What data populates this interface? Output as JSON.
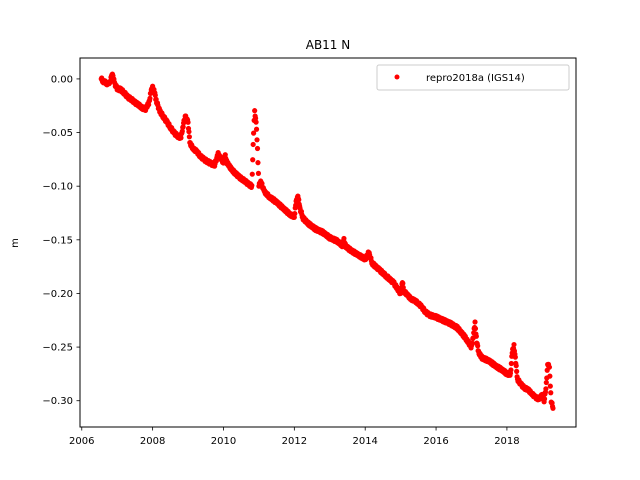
{
  "chart_data": {
    "type": "scatter",
    "title": "AB11 N",
    "xlabel": "",
    "ylabel": "m",
    "xlim": [
      2005.95,
      2019.95
    ],
    "ylim": [
      -0.3245,
      0.0195
    ],
    "xticks": [
      2006,
      2008,
      2010,
      2012,
      2014,
      2016,
      2018
    ],
    "xtick_labels": [
      "2006",
      "2008",
      "2010",
      "2012",
      "2014",
      "2016",
      "2018"
    ],
    "yticks": [
      0.0,
      -0.05,
      -0.1,
      -0.15,
      -0.2,
      -0.25,
      -0.3
    ],
    "ytick_labels": [
      "0.00",
      "−0.05",
      "−0.10",
      "−0.15",
      "−0.20",
      "−0.25",
      "−0.30"
    ],
    "grid": false,
    "legend_position": "top-right",
    "series": [
      {
        "name": "repro2018a (IGS14)",
        "color": "#ff0000",
        "marker": "circle",
        "points": [
          [
            2006.55,
            0.0
          ],
          [
            2006.6,
            -0.002
          ],
          [
            2006.65,
            -0.003
          ],
          [
            2006.7,
            -0.004
          ],
          [
            2006.75,
            -0.005
          ],
          [
            2006.8,
            -0.002
          ],
          [
            2006.85,
            0.003
          ],
          [
            2006.88,
            0.004
          ],
          [
            2006.92,
            -0.004
          ],
          [
            2007.0,
            -0.009
          ],
          [
            2007.1,
            -0.01
          ],
          [
            2007.2,
            -0.013
          ],
          [
            2007.3,
            -0.017
          ],
          [
            2007.4,
            -0.019
          ],
          [
            2007.5,
            -0.022
          ],
          [
            2007.6,
            -0.024
          ],
          [
            2007.7,
            -0.027
          ],
          [
            2007.8,
            -0.028
          ],
          [
            2007.9,
            -0.022
          ],
          [
            2007.95,
            -0.012
          ],
          [
            2008.0,
            -0.008
          ],
          [
            2008.05,
            -0.012
          ],
          [
            2008.1,
            -0.02
          ],
          [
            2008.2,
            -0.03
          ],
          [
            2008.3,
            -0.035
          ],
          [
            2008.4,
            -0.04
          ],
          [
            2008.5,
            -0.045
          ],
          [
            2008.6,
            -0.05
          ],
          [
            2008.7,
            -0.053
          ],
          [
            2008.8,
            -0.055
          ],
          [
            2008.85,
            -0.045
          ],
          [
            2008.92,
            -0.035
          ],
          [
            2009.0,
            -0.04
          ],
          [
            2009.05,
            -0.06
          ],
          [
            2009.15,
            -0.065
          ],
          [
            2009.25,
            -0.068
          ],
          [
            2009.35,
            -0.072
          ],
          [
            2009.45,
            -0.075
          ],
          [
            2009.55,
            -0.077
          ],
          [
            2009.65,
            -0.079
          ],
          [
            2009.75,
            -0.08
          ],
          [
            2009.85,
            -0.07
          ],
          [
            2009.9,
            -0.072
          ],
          [
            2009.95,
            -0.076
          ],
          [
            2010.0,
            -0.077
          ],
          [
            2010.05,
            -0.072
          ],
          [
            2010.1,
            -0.078
          ],
          [
            2010.2,
            -0.083
          ],
          [
            2010.3,
            -0.087
          ],
          [
            2010.4,
            -0.09
          ],
          [
            2010.5,
            -0.093
          ],
          [
            2010.6,
            -0.095
          ],
          [
            2010.7,
            -0.098
          ],
          [
            2010.8,
            -0.1
          ],
          [
            2010.85,
            -0.05
          ],
          [
            2010.88,
            -0.03
          ],
          [
            2010.92,
            -0.04
          ],
          [
            2010.96,
            -0.065
          ],
          [
            2011.0,
            -0.1
          ],
          [
            2011.05,
            -0.095
          ],
          [
            2011.15,
            -0.105
          ],
          [
            2011.3,
            -0.11
          ],
          [
            2011.5,
            -0.115
          ],
          [
            2011.7,
            -0.121
          ],
          [
            2011.9,
            -0.127
          ],
          [
            2012.0,
            -0.128
          ],
          [
            2012.05,
            -0.115
          ],
          [
            2012.1,
            -0.108
          ],
          [
            2012.15,
            -0.12
          ],
          [
            2012.25,
            -0.13
          ],
          [
            2012.4,
            -0.135
          ],
          [
            2012.6,
            -0.14
          ],
          [
            2012.8,
            -0.143
          ],
          [
            2013.0,
            -0.148
          ],
          [
            2013.2,
            -0.151
          ],
          [
            2013.35,
            -0.155
          ],
          [
            2013.4,
            -0.15
          ],
          [
            2013.45,
            -0.156
          ],
          [
            2013.6,
            -0.16
          ],
          [
            2013.8,
            -0.164
          ],
          [
            2014.0,
            -0.168
          ],
          [
            2014.1,
            -0.162
          ],
          [
            2014.2,
            -0.172
          ],
          [
            2014.4,
            -0.178
          ],
          [
            2014.6,
            -0.184
          ],
          [
            2014.8,
            -0.19
          ],
          [
            2015.0,
            -0.2
          ],
          [
            2015.05,
            -0.19
          ],
          [
            2015.1,
            -0.198
          ],
          [
            2015.2,
            -0.202
          ],
          [
            2015.3,
            -0.205
          ],
          [
            2015.4,
            -0.207
          ],
          [
            2015.5,
            -0.209
          ],
          [
            2015.6,
            -0.213
          ],
          [
            2015.7,
            -0.217
          ],
          [
            2015.8,
            -0.22
          ],
          [
            2016.0,
            -0.222
          ],
          [
            2016.2,
            -0.225
          ],
          [
            2016.4,
            -0.228
          ],
          [
            2016.6,
            -0.232
          ],
          [
            2016.8,
            -0.24
          ],
          [
            2017.0,
            -0.25
          ],
          [
            2017.05,
            -0.24
          ],
          [
            2017.1,
            -0.228
          ],
          [
            2017.15,
            -0.245
          ],
          [
            2017.2,
            -0.255
          ],
          [
            2017.3,
            -0.26
          ],
          [
            2017.5,
            -0.263
          ],
          [
            2017.7,
            -0.268
          ],
          [
            2017.9,
            -0.272
          ],
          [
            2018.0,
            -0.275
          ],
          [
            2018.1,
            -0.275
          ],
          [
            2018.15,
            -0.255
          ],
          [
            2018.2,
            -0.248
          ],
          [
            2018.25,
            -0.265
          ],
          [
            2018.3,
            -0.28
          ],
          [
            2018.4,
            -0.285
          ],
          [
            2018.5,
            -0.288
          ],
          [
            2018.6,
            -0.29
          ],
          [
            2018.7,
            -0.293
          ],
          [
            2018.8,
            -0.297
          ],
          [
            2018.9,
            -0.298
          ],
          [
            2019.0,
            -0.295
          ],
          [
            2019.05,
            -0.3
          ],
          [
            2019.1,
            -0.29
          ],
          [
            2019.15,
            -0.265
          ],
          [
            2019.2,
            -0.27
          ],
          [
            2019.25,
            -0.3
          ],
          [
            2019.3,
            -0.307
          ]
        ]
      }
    ]
  }
}
